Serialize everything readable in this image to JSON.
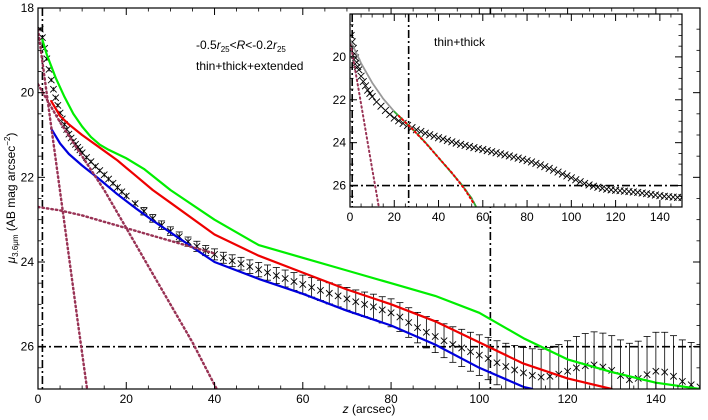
{
  "chart_data": [
    {
      "panel": "main",
      "type": "line",
      "xlabel_var": "z",
      "xlabel_unit": " (arcsec)",
      "ylabel_sym": "μ",
      "ylabel_sub": "3.6μm",
      "ylabel_unit_pre": " (AB mag arcsec",
      "ylabel_unit_sup": "−2",
      "ylabel_unit_post": ")",
      "xlim": [
        0,
        150
      ],
      "ylim": [
        27,
        18
      ],
      "y_inverted": true,
      "xticks": [
        0,
        20,
        40,
        60,
        80,
        100,
        120,
        140
      ],
      "yticks": [
        18,
        20,
        22,
        24,
        26
      ],
      "annotation_line1": {
        "a": "-0.5",
        "r1": "r",
        "r1_sub": "25",
        "mid": "<",
        "R": "R",
        "b": "<-0.2",
        "r2": "r",
        "r2_sub": "25"
      },
      "annotation_line2": "thin+thick+extended",
      "reference_lines": {
        "vertical_x": [
          1,
          102.5
        ],
        "horizontal_y": 26
      },
      "data_points": {
        "marker": "x",
        "color": "#000000",
        "x": [
          0.5,
          1,
          1.5,
          2,
          2.5,
          3,
          3.5,
          4,
          4.5,
          5,
          5.5,
          6,
          6.5,
          7,
          7.5,
          8,
          8.5,
          9,
          9.5,
          10,
          11,
          12,
          13,
          14,
          15,
          16,
          17,
          18,
          19,
          20,
          22,
          24,
          26,
          28,
          30,
          32,
          34,
          36,
          38,
          40,
          42,
          44,
          46,
          48,
          50,
          52,
          54,
          56,
          58,
          60,
          62,
          64,
          66,
          68,
          70,
          72,
          74,
          76,
          78,
          80,
          82,
          84,
          86,
          88,
          90,
          92,
          94,
          96,
          98,
          100,
          102,
          104,
          106,
          108,
          110,
          112,
          114,
          116,
          118,
          120,
          122,
          124,
          126,
          128,
          130,
          132,
          134,
          136,
          138,
          140,
          142,
          144,
          146,
          148,
          150
        ],
        "y": [
          18.5,
          18.7,
          18.95,
          19.2,
          19.45,
          19.7,
          19.92,
          20.12,
          20.3,
          20.48,
          20.62,
          20.75,
          20.87,
          20.98,
          21.07,
          21.15,
          21.22,
          21.29,
          21.35,
          21.42,
          21.53,
          21.63,
          21.74,
          21.84,
          21.94,
          22.04,
          22.14,
          22.24,
          22.34,
          22.44,
          22.62,
          22.8,
          22.97,
          23.13,
          23.27,
          23.4,
          23.52,
          23.63,
          23.73,
          23.82,
          23.9,
          23.97,
          24.04,
          24.11,
          24.18,
          24.25,
          24.32,
          24.39,
          24.46,
          24.53,
          24.6,
          24.67,
          24.74,
          24.8,
          24.87,
          24.94,
          25.0,
          25.06,
          25.13,
          25.2,
          25.3,
          25.43,
          25.55,
          25.66,
          25.76,
          25.86,
          25.95,
          26.03,
          26.12,
          26.2,
          26.28,
          26.38,
          26.47,
          26.55,
          26.62,
          26.68,
          26.72,
          26.7,
          26.65,
          26.58,
          26.5,
          26.45,
          26.43,
          26.48,
          26.56,
          26.68,
          26.78,
          26.75,
          26.66,
          26.58,
          26.6,
          26.7,
          26.82,
          26.9,
          26.95
        ],
        "err_y": [
          0.05,
          0.05,
          0.05,
          0.05,
          0.05,
          0.05,
          0.05,
          0.05,
          0.05,
          0.05,
          0.05,
          0.05,
          0.05,
          0.05,
          0.05,
          0.05,
          0.05,
          0.05,
          0.05,
          0.05,
          0.05,
          0.05,
          0.05,
          0.05,
          0.06,
          0.06,
          0.06,
          0.07,
          0.07,
          0.07,
          0.08,
          0.09,
          0.09,
          0.1,
          0.1,
          0.11,
          0.11,
          0.12,
          0.12,
          0.13,
          0.13,
          0.14,
          0.15,
          0.16,
          0.17,
          0.18,
          0.19,
          0.2,
          0.21,
          0.22,
          0.23,
          0.24,
          0.25,
          0.26,
          0.27,
          0.28,
          0.29,
          0.3,
          0.31,
          0.33,
          0.34,
          0.35,
          0.36,
          0.37,
          0.38,
          0.4,
          0.42,
          0.44,
          0.46,
          0.48,
          0.5,
          0.52,
          0.55,
          0.58,
          0.6,
          0.63,
          0.66,
          0.68,
          0.7,
          0.72,
          0.74,
          0.76,
          0.78,
          0.8,
          0.82,
          0.84,
          0.86,
          0.88,
          0.9,
          0.92,
          0.94,
          0.96,
          0.98,
          1.0,
          1.0
        ]
      },
      "series": [
        {
          "color": "#00ee00",
          "style": "solid",
          "x": [
            1,
            2,
            4,
            6,
            8,
            10,
            12,
            14,
            16,
            18,
            20,
            24,
            30,
            40,
            50,
            60,
            70,
            80,
            90,
            100,
            110,
            120,
            130,
            140,
            150
          ],
          "y": [
            18.75,
            19.1,
            19.65,
            20.1,
            20.5,
            20.8,
            21.05,
            21.23,
            21.35,
            21.45,
            21.55,
            21.8,
            22.3,
            23.0,
            23.6,
            23.9,
            24.2,
            24.5,
            24.8,
            25.2,
            25.8,
            26.3,
            26.6,
            26.85,
            27.0
          ]
        },
        {
          "color": "#ee0000",
          "style": "solid",
          "x": [
            3,
            5,
            7,
            10,
            14,
            18,
            22,
            26,
            30,
            40,
            50,
            60,
            70,
            80,
            90,
            100,
            110,
            120,
            130
          ],
          "y": [
            20.2,
            20.55,
            20.75,
            21.0,
            21.3,
            21.6,
            21.95,
            22.3,
            22.6,
            23.35,
            23.85,
            24.25,
            24.65,
            25.0,
            25.4,
            25.9,
            26.4,
            26.75,
            27.0
          ]
        },
        {
          "color": "#0000dd",
          "style": "solid",
          "x": [
            3,
            5,
            7,
            10,
            14,
            18,
            22,
            26,
            30,
            40,
            50,
            60,
            70,
            80,
            90,
            100,
            110,
            112
          ],
          "y": [
            20.85,
            21.2,
            21.45,
            21.72,
            22.05,
            22.4,
            22.72,
            23.02,
            23.3,
            24.0,
            24.4,
            24.75,
            25.15,
            25.5,
            25.95,
            26.5,
            26.95,
            27.0
          ]
        },
        {
          "color": "#993355",
          "style": "dotted",
          "component": "thin",
          "x": [
            0,
            3,
            6,
            9,
            11,
            12
          ],
          "y": [
            18.5,
            20.8,
            23.1,
            25.4,
            26.9,
            27.7
          ]
        },
        {
          "color": "#993355",
          "style": "dotted",
          "component": "thick",
          "x": [
            0,
            5,
            10,
            15,
            20,
            25,
            30,
            35,
            40,
            42
          ],
          "y": [
            19.8,
            20.7,
            21.5,
            22.3,
            23.2,
            24.1,
            25.0,
            25.9,
            26.9,
            27.3
          ]
        },
        {
          "color": "#993355",
          "style": "dotted",
          "component": "extended",
          "x": [
            0,
            5,
            10,
            15,
            20,
            25,
            30,
            35,
            40
          ],
          "y": [
            22.7,
            22.78,
            22.9,
            23.05,
            23.2,
            23.35,
            23.5,
            23.65,
            23.8
          ]
        }
      ]
    },
    {
      "panel": "inset",
      "type": "line",
      "xlim": [
        0,
        150
      ],
      "ylim": [
        27,
        18
      ],
      "y_inverted": true,
      "xticks": [
        0,
        20,
        40,
        60,
        80,
        100,
        120,
        140
      ],
      "yticks": [
        20,
        22,
        24,
        26
      ],
      "annotation": "thin+thick",
      "reference_lines": {
        "vertical_x": [
          1,
          26.5
        ],
        "horizontal_y": 26
      },
      "data_points": {
        "marker": "x",
        "color": "#000000",
        "x": [
          0.5,
          1,
          1.5,
          2,
          2.5,
          3,
          3.5,
          4,
          5,
          6,
          7,
          8,
          9,
          10,
          12,
          14,
          16,
          18,
          20,
          22,
          24,
          26,
          28,
          30,
          32,
          34,
          36,
          38,
          40,
          42,
          44,
          46,
          48,
          50,
          52,
          54,
          56,
          58,
          60,
          62,
          64,
          66,
          68,
          70,
          72,
          74,
          76,
          78,
          80,
          82,
          84,
          86,
          88,
          90,
          92,
          94,
          96,
          98,
          100,
          102,
          104,
          106,
          108,
          110,
          112,
          114,
          116,
          118,
          120,
          122,
          124,
          126,
          128,
          130,
          132,
          134,
          136,
          138,
          140,
          142,
          144,
          146,
          148,
          150
        ],
        "y": [
          19.0,
          19.3,
          19.6,
          19.85,
          20.05,
          20.25,
          20.45,
          20.6,
          20.9,
          21.15,
          21.35,
          21.55,
          21.7,
          21.85,
          22.1,
          22.3,
          22.5,
          22.68,
          22.85,
          22.98,
          23.1,
          23.2,
          23.3,
          23.4,
          23.48,
          23.56,
          23.63,
          23.7,
          23.77,
          23.83,
          23.9,
          23.96,
          24.02,
          24.08,
          24.13,
          24.18,
          24.23,
          24.28,
          24.32,
          24.37,
          24.42,
          24.47,
          24.52,
          24.57,
          24.62,
          24.67,
          24.72,
          24.78,
          24.84,
          24.9,
          24.97,
          25.04,
          25.12,
          25.2,
          25.28,
          25.37,
          25.46,
          25.55,
          25.64,
          25.73,
          25.82,
          25.9,
          25.97,
          26.03,
          26.08,
          26.13,
          26.17,
          26.2,
          26.22,
          26.24,
          26.26,
          26.28,
          26.3,
          26.32,
          26.35,
          26.38,
          26.41,
          26.44,
          26.47,
          26.5,
          26.52,
          26.54,
          26.55,
          26.56
        ]
      },
      "series": [
        {
          "color": "#993355",
          "style": "dotted",
          "component": "thin",
          "x": [
            0,
            2,
            4,
            6,
            8,
            10,
            12,
            13
          ],
          "y": [
            19.2,
            20.4,
            21.6,
            22.8,
            24.0,
            25.2,
            26.4,
            27.0
          ]
        },
        {
          "color": "#999999",
          "style": "solid",
          "x": [
            0,
            5,
            10,
            15,
            20,
            25,
            30,
            35,
            40,
            45,
            50,
            55,
            57
          ],
          "y": [
            19.2,
            20.3,
            21.2,
            21.95,
            22.55,
            23.05,
            23.55,
            24.1,
            24.7,
            25.3,
            25.9,
            26.6,
            27.0
          ]
        },
        {
          "color": "#33aa33",
          "style": "dashed",
          "x": [
            20,
            25,
            30,
            35,
            40,
            45,
            50,
            55,
            57
          ],
          "y": [
            22.55,
            23.05,
            23.55,
            24.1,
            24.7,
            25.3,
            25.9,
            26.6,
            27.0
          ]
        },
        {
          "color": "#ee0000",
          "style": "dotted",
          "x": [
            22,
            28,
            34,
            40,
            46,
            52,
            56
          ],
          "y": [
            22.75,
            23.35,
            24.0,
            24.7,
            25.4,
            26.2,
            26.85
          ]
        }
      ]
    }
  ]
}
